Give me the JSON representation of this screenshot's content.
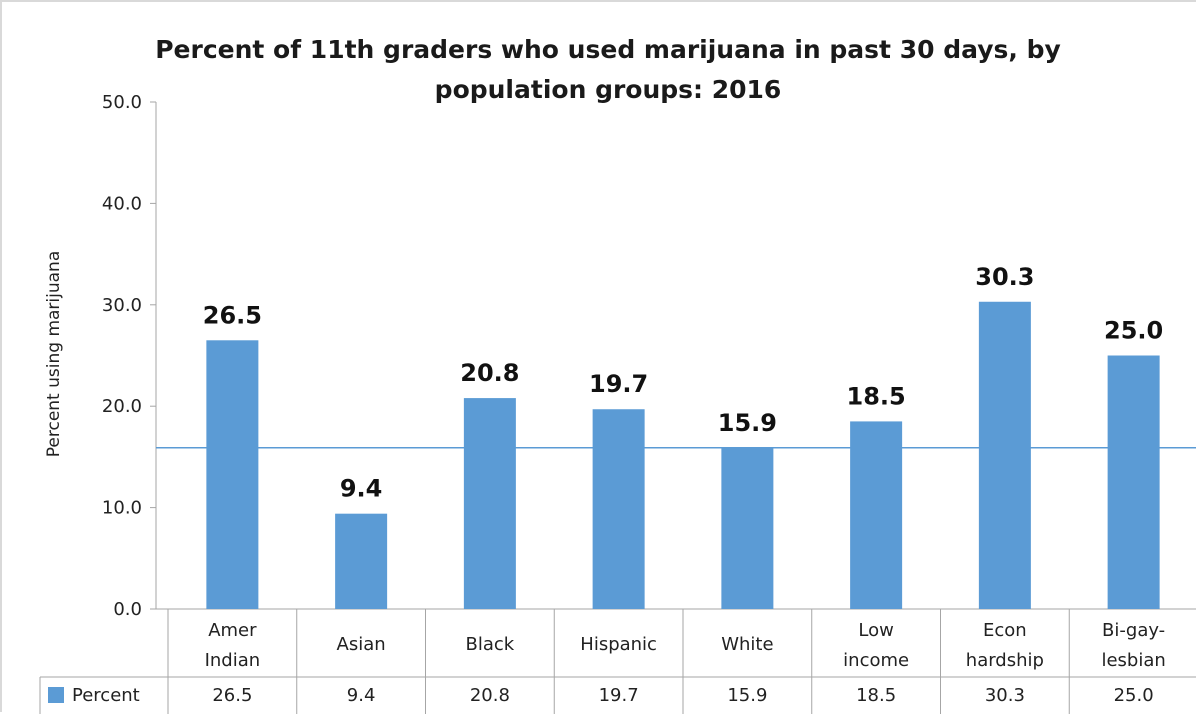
{
  "chart_data": {
    "type": "bar",
    "title_lines": [
      "Percent of 11th graders who used marijuana in past 30 days, by",
      "population groups: 2016"
    ],
    "xlabel": "",
    "ylabel": "Percent  using marijuana",
    "ylim": [
      0,
      50
    ],
    "yticks": [
      "0.0",
      "10.0",
      "20.0",
      "30.0",
      "40.0",
      "50.0"
    ],
    "categories": [
      [
        "Amer",
        "Indian"
      ],
      [
        "Asian"
      ],
      [
        "Black"
      ],
      [
        "Hispanic"
      ],
      [
        "White"
      ],
      [
        "Low",
        "income"
      ],
      [
        "Econ",
        "hardship"
      ],
      [
        "Bi-gay-",
        "lesbian"
      ]
    ],
    "series": [
      {
        "name": "Percent",
        "values": [
          26.5,
          9.4,
          20.8,
          19.7,
          15.9,
          18.5,
          30.3,
          25.0
        ],
        "labels": [
          "26.5",
          "9.4",
          "20.8",
          "19.7",
          "15.9",
          "18.5",
          "30.3",
          "25.0"
        ],
        "color": "#5b9bd5"
      }
    ],
    "reference_line": {
      "value": 15.9,
      "color": "#5b9bd5"
    },
    "grid": false,
    "legend": "data-table"
  }
}
